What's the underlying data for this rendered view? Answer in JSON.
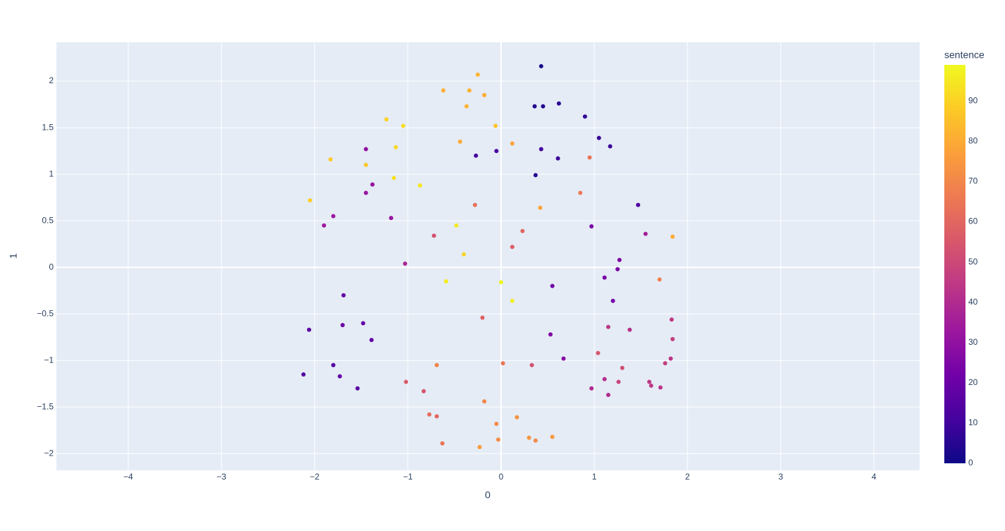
{
  "chart_data": {
    "type": "scatter",
    "x_label": "0",
    "y_label": "1",
    "colorbar_title": "sentence",
    "xlim": [
      -4.77,
      4.49
    ],
    "ylim": [
      -2.18,
      2.417
    ],
    "xticks": [
      {
        "value": -4,
        "label": "−4"
      },
      {
        "value": -3,
        "label": "−3"
      },
      {
        "value": -2,
        "label": "−2"
      },
      {
        "value": -1,
        "label": "−1"
      },
      0,
      1,
      2,
      3,
      4
    ],
    "yticks": [
      {
        "value": -2,
        "label": "−2"
      },
      {
        "value": -1.5,
        "label": "−1.5"
      },
      {
        "value": -1,
        "label": "−1"
      },
      {
        "value": -0.5,
        "label": "−0.5"
      },
      0,
      0.5,
      1,
      1.5,
      2
    ],
    "grid": true,
    "colorscale": [
      "#0d0887",
      "#46039f",
      "#7201a8",
      "#9c179e",
      "#bd3786",
      "#d8576b",
      "#ed7953",
      "#fb9f3a",
      "#fdca26",
      "#f0f921"
    ],
    "clim": [
      0,
      99
    ],
    "cticks": [
      0,
      10,
      20,
      30,
      40,
      50,
      60,
      70,
      80,
      90
    ],
    "series": [
      {
        "x": [
          0.43,
          0.36,
          0.45,
          0.62,
          0.9,
          1.05,
          1.17,
          0.43,
          0.37,
          0.61,
          -0.27,
          -0.05,
          1.47,
          -2.12,
          -2.06,
          -1.8,
          -1.73,
          -1.54,
          -1.69,
          -1.7,
          -1.48,
          -1.39,
          0.55,
          1.2,
          1.11,
          1.25,
          1.27,
          0.97,
          0.53,
          0.67,
          -1.45,
          -1.38,
          -1.45,
          -1.8,
          -1.9,
          -1.18,
          -1.03,
          1.55,
          1.38,
          1.15,
          1.83,
          1.84,
          1.82,
          1.76,
          1.3,
          1.11,
          1.26,
          0.97,
          1.15,
          1.59,
          1.61,
          1.71,
          1.04,
          0.33,
          -1.02,
          -0.83,
          -0.72,
          0.12,
          0.23,
          -0.2,
          0.02,
          -0.77,
          -0.69,
          -0.63,
          -0.28,
          0.85,
          0.95,
          1.7,
          -0.69,
          -0.18,
          -0.05,
          -0.03,
          0.17,
          0.3,
          0.37,
          0.55,
          -0.23,
          0.42,
          1.84,
          0.12,
          -0.44,
          -0.62,
          -0.34,
          -0.18,
          -0.25,
          -0.37,
          -0.06,
          -1.05,
          -1.23,
          -1.13,
          -1.83,
          -1.45,
          -1.15,
          -0.87,
          -2.05,
          -0.48,
          -0.4,
          -0.59,
          0.0,
          0.12
        ],
        "y": [
          2.16,
          1.73,
          1.73,
          1.76,
          1.62,
          1.39,
          1.3,
          1.27,
          0.99,
          1.17,
          1.2,
          1.25,
          0.67,
          -1.15,
          -0.67,
          -1.05,
          -1.17,
          -1.3,
          -0.3,
          -0.62,
          -0.6,
          -0.78,
          -0.2,
          -0.36,
          -0.11,
          -0.02,
          0.08,
          0.44,
          -0.72,
          -0.98,
          1.27,
          0.89,
          0.8,
          0.55,
          0.45,
          0.53,
          0.04,
          0.36,
          -0.67,
          -0.64,
          -0.56,
          -0.77,
          -0.98,
          -1.03,
          -1.08,
          -1.2,
          -1.23,
          -1.3,
          -1.37,
          -1.23,
          -1.27,
          -1.29,
          -0.92,
          -1.05,
          -1.23,
          -1.33,
          0.34,
          0.22,
          0.39,
          -0.54,
          -1.03,
          -1.58,
          -1.6,
          -1.89,
          0.67,
          0.8,
          1.18,
          -0.13,
          -1.05,
          -1.44,
          -1.68,
          -1.85,
          -1.61,
          -1.83,
          -1.86,
          -1.82,
          -1.93,
          0.64,
          0.33,
          1.33,
          1.35,
          1.9,
          1.9,
          1.85,
          2.07,
          1.73,
          1.52,
          1.52,
          1.59,
          1.29,
          1.16,
          1.1,
          0.96,
          0.88,
          0.72,
          0.45,
          0.14,
          -0.15,
          -0.16,
          -0.36
        ],
        "color_values": [
          2,
          4,
          5,
          6,
          7,
          8,
          9,
          10,
          5,
          9,
          11,
          12,
          13,
          14,
          17,
          15,
          19,
          16,
          18,
          20,
          19,
          18,
          21,
          22,
          23,
          24,
          25,
          24,
          26,
          27,
          30,
          31,
          32,
          33,
          34,
          32,
          38,
          36,
          42,
          44,
          45,
          46,
          43,
          47,
          52,
          41,
          48,
          39,
          40,
          44,
          45,
          43,
          55,
          53,
          56,
          54,
          53,
          57,
          60,
          58,
          65,
          62,
          60,
          64,
          63,
          66,
          64,
          68,
          69,
          70,
          71,
          72,
          73,
          74,
          71,
          75,
          76,
          78,
          80,
          78,
          80,
          81,
          82,
          80,
          83,
          82,
          86,
          92,
          90,
          91,
          88,
          87,
          93,
          94,
          89,
          95,
          90,
          96,
          98,
          97
        ]
      }
    ]
  }
}
